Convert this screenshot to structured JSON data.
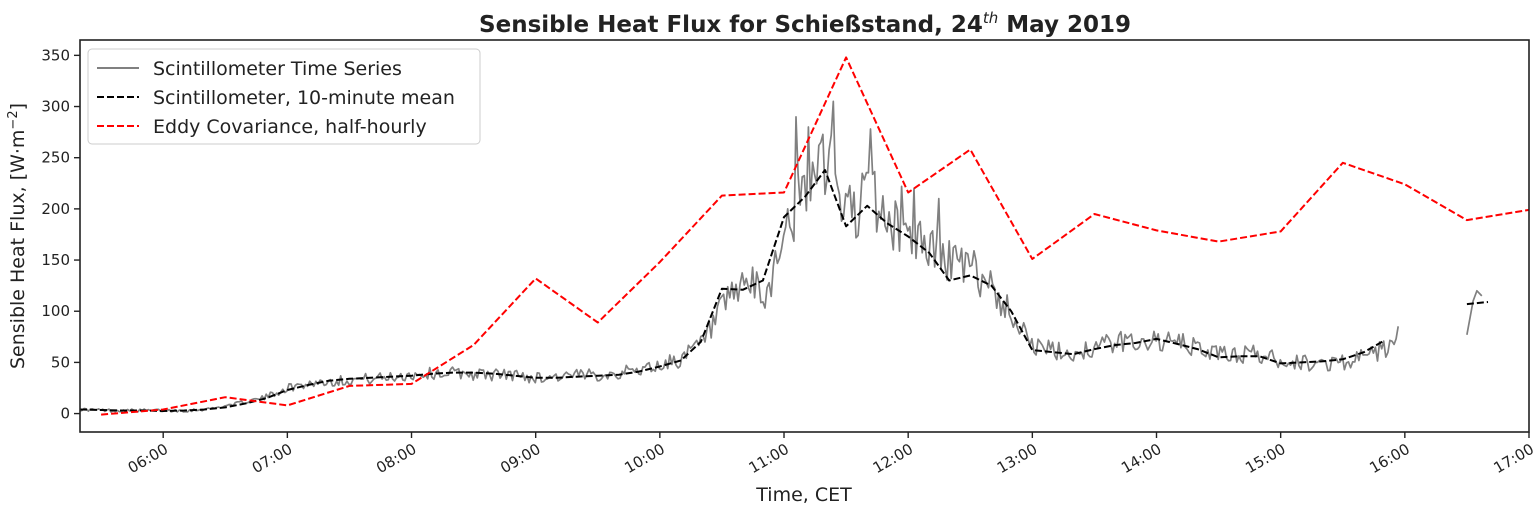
{
  "chart_data": {
    "type": "line",
    "title": "Sensible Heat Flux for Schießstand, 24",
    "title_superscript": "th",
    "title_suffix": " May 2019",
    "xlabel": "Time, CET",
    "ylabel": "Sensible Heat Flux, [W·m",
    "ylabel_superscript": "−2",
    "ylabel_suffix": "]",
    "x_unit": "hours (CET)",
    "xlim": [
      5.33,
      17.0
    ],
    "ylim": [
      -18,
      365
    ],
    "x_ticks": [
      6,
      7,
      8,
      9,
      10,
      11,
      12,
      13,
      14,
      15,
      16,
      17
    ],
    "x_tick_labels": [
      "06:00",
      "07:00",
      "08:00",
      "09:00",
      "10:00",
      "11:00",
      "12:00",
      "13:00",
      "14:00",
      "15:00",
      "16:00",
      "17:00"
    ],
    "y_ticks": [
      0,
      50,
      100,
      150,
      200,
      250,
      300,
      350
    ],
    "y_tick_labels": [
      "0",
      "50",
      "100",
      "150",
      "200",
      "250",
      "300",
      "350"
    ],
    "grid": false,
    "legend_position": "top-left",
    "series": [
      {
        "name": "Scintillometer Time Series",
        "color": "#808080",
        "style": "solid",
        "segments": [
          {
            "anchors": [
              [
                5.33,
                4
              ],
              [
                5.6,
                3
              ],
              [
                5.9,
                3
              ],
              [
                6.2,
                3
              ],
              [
                6.4,
                5
              ],
              [
                6.6,
                10
              ],
              [
                6.8,
                15
              ],
              [
                7.0,
                25
              ],
              [
                7.2,
                30
              ],
              [
                7.5,
                33
              ],
              [
                7.8,
                35
              ],
              [
                8.0,
                38
              ],
              [
                8.3,
                40
              ],
              [
                8.6,
                38
              ],
              [
                8.8,
                38
              ],
              [
                9.0,
                35
              ],
              [
                9.3,
                37
              ],
              [
                9.5,
                38
              ],
              [
                9.7,
                40
              ],
              [
                10.0,
                47
              ],
              [
                10.2,
                55
              ],
              [
                10.35,
                70
              ],
              [
                10.5,
                100
              ],
              [
                10.7,
                130
              ],
              [
                10.85,
                110
              ],
              [
                11.0,
                180
              ],
              [
                11.2,
                220
              ],
              [
                11.35,
                250
              ],
              [
                11.5,
                195
              ],
              [
                11.7,
                215
              ],
              [
                11.85,
                185
              ],
              [
                12.0,
                175
              ],
              [
                12.2,
                160
              ],
              [
                12.35,
                150
              ],
              [
                12.5,
                140
              ],
              [
                12.65,
                130
              ],
              [
                12.8,
                100
              ],
              [
                12.95,
                85
              ],
              [
                13.0,
                65
              ],
              [
                13.3,
                58
              ],
              [
                13.6,
                68
              ],
              [
                13.9,
                72
              ],
              [
                14.2,
                68
              ],
              [
                14.5,
                58
              ],
              [
                14.8,
                58
              ],
              [
                15.0,
                52
              ],
              [
                15.3,
                48
              ],
              [
                15.6,
                52
              ],
              [
                15.9,
                65
              ],
              [
                15.95,
                80
              ]
            ],
            "peaks": [
              [
                11.1,
                290
              ],
              [
                11.2,
                280
              ],
              [
                11.3,
                265
              ],
              [
                11.4,
                305
              ],
              [
                11.7,
                278
              ],
              [
                11.95,
                222
              ],
              [
                12.25,
                210
              ],
              [
                12.05,
                220
              ]
            ]
          },
          {
            "anchors": [
              [
                16.5,
                77
              ],
              [
                16.55,
                110
              ],
              [
                16.58,
                120
              ],
              [
                16.62,
                115
              ]
            ],
            "peaks": []
          }
        ]
      },
      {
        "name": "Scintillometer, 10-minute mean",
        "color": "#000000",
        "style": "dashed",
        "segments": [
          [
            [
              5.33,
              4
            ],
            [
              5.5,
              3.5
            ],
            [
              5.67,
              3
            ],
            [
              5.83,
              3
            ],
            [
              6.0,
              2.5
            ],
            [
              6.17,
              3
            ],
            [
              6.33,
              4
            ],
            [
              6.5,
              6
            ],
            [
              6.67,
              10
            ],
            [
              6.83,
              15
            ],
            [
              7.0,
              23
            ],
            [
              7.17,
              28
            ],
            [
              7.33,
              32
            ],
            [
              7.5,
              34
            ],
            [
              7.67,
              35
            ],
            [
              7.83,
              36
            ],
            [
              8.0,
              37
            ],
            [
              8.17,
              39
            ],
            [
              8.33,
              40
            ],
            [
              8.5,
              40
            ],
            [
              8.67,
              39
            ],
            [
              8.83,
              37
            ],
            [
              9.0,
              35
            ],
            [
              9.17,
              35
            ],
            [
              9.33,
              36
            ],
            [
              9.5,
              37
            ],
            [
              9.67,
              38
            ],
            [
              9.83,
              41
            ],
            [
              10.0,
              46
            ],
            [
              10.17,
              52
            ],
            [
              10.33,
              70
            ],
            [
              10.5,
              122
            ],
            [
              10.67,
              121
            ],
            [
              10.83,
              130
            ],
            [
              11.0,
              192
            ],
            [
              11.17,
              212
            ],
            [
              11.33,
              238
            ],
            [
              11.5,
              183
            ],
            [
              11.67,
              203
            ],
            [
              11.83,
              186
            ],
            [
              12.0,
              173
            ],
            [
              12.17,
              157
            ],
            [
              12.33,
              130
            ],
            [
              12.5,
              135
            ],
            [
              12.67,
              125
            ],
            [
              12.83,
              100
            ],
            [
              13.0,
              62
            ],
            [
              13.17,
              60
            ],
            [
              13.33,
              58
            ],
            [
              13.5,
              63
            ],
            [
              13.67,
              67
            ],
            [
              13.83,
              69
            ],
            [
              14.0,
              73
            ],
            [
              14.17,
              68
            ],
            [
              14.33,
              63
            ],
            [
              14.5,
              55
            ],
            [
              14.67,
              56
            ],
            [
              14.83,
              56
            ],
            [
              15.0,
              49
            ],
            [
              15.17,
              50
            ],
            [
              15.33,
              51
            ],
            [
              15.5,
              53
            ],
            [
              15.67,
              60
            ],
            [
              15.83,
              71
            ]
          ],
          [
            [
              16.5,
              107
            ],
            [
              16.67,
              109
            ]
          ]
        ]
      },
      {
        "name": "Eddy Covariance, half-hourly",
        "color": "#ff0000",
        "style": "dashed",
        "segments": [
          [
            [
              5.5,
              -1
            ],
            [
              6.0,
              4
            ],
            [
              6.5,
              16
            ],
            [
              7.0,
              8
            ],
            [
              7.5,
              27
            ],
            [
              8.0,
              29
            ],
            [
              8.5,
              67
            ],
            [
              9.0,
              132
            ],
            [
              9.5,
              89
            ],
            [
              10.0,
              148
            ],
            [
              10.5,
              213
            ],
            [
              11.0,
              216
            ],
            [
              11.5,
              348
            ],
            [
              12.0,
              216
            ],
            [
              12.5,
              258
            ],
            [
              13.0,
              151
            ],
            [
              13.5,
              195
            ],
            [
              14.0,
              179
            ],
            [
              14.5,
              168
            ],
            [
              15.0,
              178
            ],
            [
              15.5,
              245
            ],
            [
              16.0,
              224
            ],
            [
              16.5,
              189
            ],
            [
              17.0,
              199
            ]
          ]
        ]
      }
    ]
  }
}
